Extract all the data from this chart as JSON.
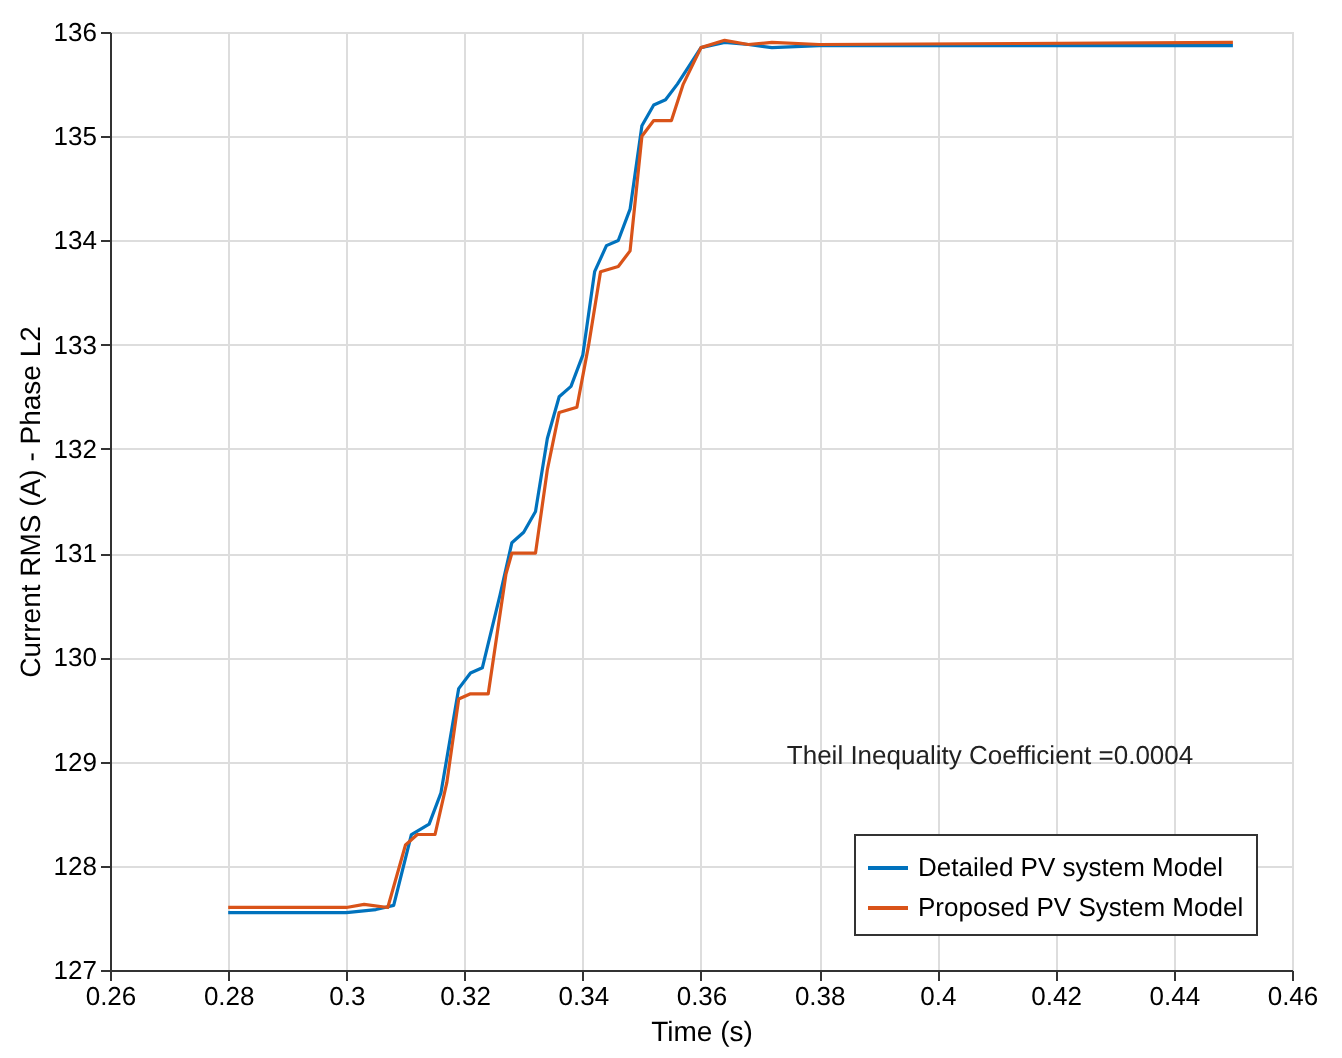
{
  "chart_data": {
    "type": "line",
    "xlabel": "Time (s)",
    "ylabel": "Current RMS (A) - Phase L2",
    "xlim": [
      0.26,
      0.46
    ],
    "xticks": [
      0.26,
      0.28,
      0.3,
      0.32,
      0.34,
      0.36,
      0.38,
      0.4,
      0.42,
      0.44,
      0.46
    ],
    "ylim": [
      127,
      136
    ],
    "yticks": [
      127,
      128,
      129,
      130,
      131,
      132,
      133,
      134,
      135,
      136
    ],
    "grid": true,
    "legend": "bottom right",
    "line_style": "solid",
    "annotations": [
      "Theil Inequality Coefficient =0.0004"
    ],
    "series": [
      {
        "name": "Detailed PV system Model",
        "color": "#0072bd",
        "x": [
          0.28,
          0.3,
          0.305,
          0.308,
          0.311,
          0.314,
          0.316,
          0.319,
          0.321,
          0.323,
          0.326,
          0.328,
          0.33,
          0.332,
          0.334,
          0.336,
          0.338,
          0.34,
          0.342,
          0.344,
          0.346,
          0.348,
          0.35,
          0.352,
          0.354,
          0.356,
          0.36,
          0.364,
          0.368,
          0.372,
          0.38,
          0.45
        ],
        "values": [
          127.55,
          127.55,
          127.58,
          127.62,
          128.3,
          128.4,
          128.7,
          129.7,
          129.85,
          129.9,
          130.6,
          131.1,
          131.2,
          131.4,
          132.1,
          132.5,
          132.6,
          132.9,
          133.7,
          133.95,
          134.0,
          134.3,
          135.1,
          135.3,
          135.35,
          135.5,
          135.85,
          135.9,
          135.88,
          135.85,
          135.87,
          135.87
        ]
      },
      {
        "name": "Proposed PV System Model",
        "color": "#d95319",
        "x": [
          0.28,
          0.3,
          0.303,
          0.307,
          0.31,
          0.312,
          0.315,
          0.317,
          0.319,
          0.321,
          0.324,
          0.327,
          0.328,
          0.332,
          0.334,
          0.336,
          0.339,
          0.341,
          0.343,
          0.346,
          0.348,
          0.35,
          0.352,
          0.355,
          0.357,
          0.36,
          0.364,
          0.368,
          0.372,
          0.38,
          0.45
        ],
        "values": [
          127.6,
          127.6,
          127.63,
          127.6,
          128.2,
          128.3,
          128.3,
          128.8,
          129.6,
          129.65,
          129.65,
          130.8,
          131.0,
          131.0,
          131.8,
          132.35,
          132.4,
          133.0,
          133.7,
          133.75,
          133.9,
          135.0,
          135.15,
          135.15,
          135.5,
          135.85,
          135.92,
          135.88,
          135.9,
          135.88,
          135.9
        ]
      }
    ]
  }
}
